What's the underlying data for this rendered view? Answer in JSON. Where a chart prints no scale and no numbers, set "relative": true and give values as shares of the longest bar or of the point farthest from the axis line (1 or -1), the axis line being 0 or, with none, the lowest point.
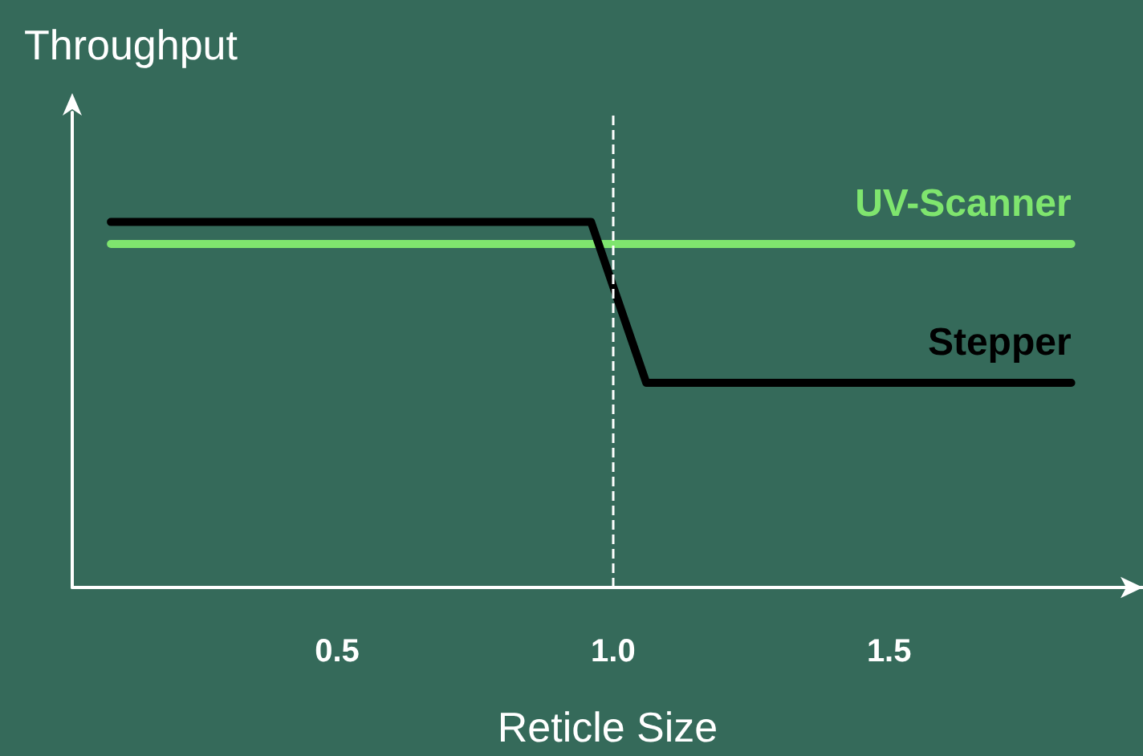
{
  "chart_data": {
    "type": "line",
    "relative": true,
    "xlabel": "Reticle Size",
    "ylabel": "Throughput",
    "xlim": [
      0.02,
      1.96
    ],
    "xticks": [
      0.5,
      {
        "value": 1,
        "label": "1.0"
      },
      1.5
    ],
    "series": [
      {
        "name": "UV-Scanner",
        "color": "#7fe56e",
        "x": [
          0.09,
          1.83
        ],
        "values": [
          0.94,
          0.94
        ]
      },
      {
        "name": "Stepper",
        "color": "#000000",
        "x": [
          0.09,
          0.96,
          1.06,
          1.83
        ],
        "values": [
          1,
          1,
          0.56,
          0.56
        ]
      }
    ],
    "ref_lines": [
      {
        "axis": "x",
        "value": 1,
        "color": "#ffffff",
        "line_style": "dashed"
      }
    ],
    "legend": false,
    "grid": false,
    "marker": "none",
    "line_style": "solid"
  }
}
